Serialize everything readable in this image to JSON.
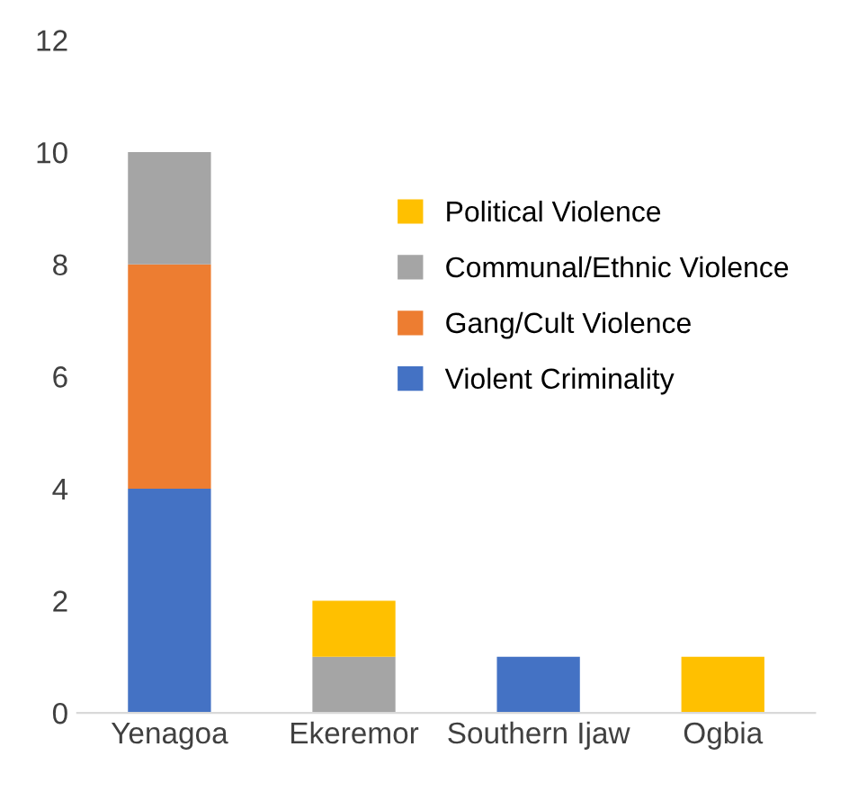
{
  "chart_data": {
    "type": "bar",
    "stacked": true,
    "categories": [
      "Yenagoa",
      "Ekeremor",
      "Southern Ijaw",
      "Ogbia"
    ],
    "series": [
      {
        "name": "Violent Criminality",
        "color": "#4472c4",
        "values": [
          4,
          0,
          1,
          0
        ]
      },
      {
        "name": "Gang/Cult Violence",
        "color": "#ed7d31",
        "values": [
          4,
          0,
          0,
          0
        ]
      },
      {
        "name": "Communal/Ethnic Violence",
        "color": "#a5a5a5",
        "values": [
          2,
          1,
          0,
          0
        ]
      },
      {
        "name": "Political Violence",
        "color": "#ffc000",
        "values": [
          0,
          1,
          0,
          1
        ]
      }
    ],
    "ylim": [
      0,
      12
    ],
    "yticks": [
      0,
      2,
      4,
      6,
      8,
      10,
      12
    ],
    "grid": false,
    "legend": "top right"
  }
}
